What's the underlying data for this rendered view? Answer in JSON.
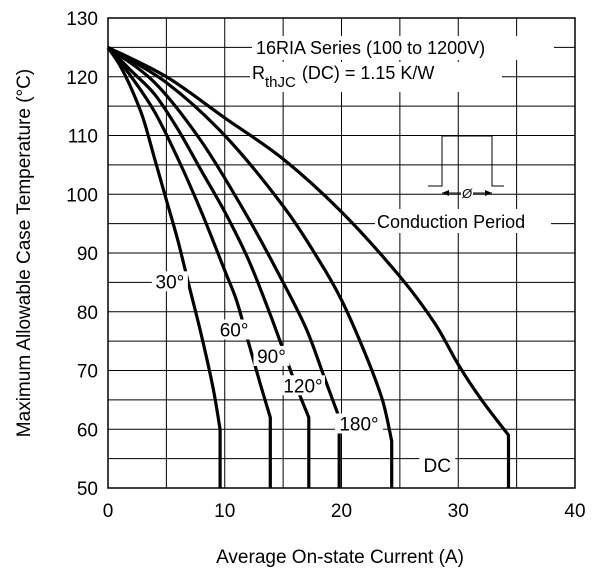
{
  "chart_data": {
    "type": "line",
    "title": "",
    "xlabel": "Average On-state Current (A)",
    "ylabel": "Maximum Allowable Case Temperature (°C)",
    "xlim": [
      0,
      40
    ],
    "ylim": [
      50,
      130
    ],
    "x_ticks": [
      "0",
      "10",
      "20",
      "30",
      "40"
    ],
    "y_ticks": [
      "50",
      "60",
      "70",
      "80",
      "90",
      "100",
      "110",
      "120",
      "130"
    ],
    "grid": true,
    "annotations": {
      "series_line": "16RIA Series (100 to 1200V)",
      "rth_prefix": "R",
      "rth_subscript": "thJC",
      "rth_suffix": "(DC) = 1.15 K/W",
      "inset_label": "Conduction Period",
      "inset_symbol": "Ø"
    },
    "series": [
      {
        "name": "30°",
        "points": [
          [
            0,
            125
          ],
          [
            1,
            122
          ],
          [
            2,
            118
          ],
          [
            3,
            113
          ],
          [
            4,
            106
          ],
          [
            5,
            99
          ],
          [
            6,
            92
          ],
          [
            7,
            84
          ],
          [
            8,
            76
          ],
          [
            9,
            67
          ],
          [
            9.6,
            60
          ],
          [
            9.6,
            50
          ]
        ]
      },
      {
        "name": "60°",
        "points": [
          [
            0,
            125
          ],
          [
            2,
            120
          ],
          [
            4,
            114
          ],
          [
            6,
            106
          ],
          [
            8,
            97
          ],
          [
            10,
            87
          ],
          [
            11,
            82
          ],
          [
            12,
            75
          ],
          [
            13,
            68
          ],
          [
            13.9,
            62
          ],
          [
            13.9,
            50
          ]
        ]
      },
      {
        "name": "90°",
        "points": [
          [
            0,
            125
          ],
          [
            2,
            121
          ],
          [
            4,
            117
          ],
          [
            6,
            111
          ],
          [
            8,
            104
          ],
          [
            10,
            97
          ],
          [
            12,
            89
          ],
          [
            14,
            79
          ],
          [
            16,
            68
          ],
          [
            17.2,
            62
          ],
          [
            17.2,
            50
          ]
        ]
      },
      {
        "name": "120°",
        "points": [
          [
            0,
            125
          ],
          [
            4,
            119
          ],
          [
            8,
            109
          ],
          [
            12,
            96
          ],
          [
            15,
            85
          ],
          [
            17,
            77
          ],
          [
            18.5,
            69
          ],
          [
            19.8,
            62
          ],
          [
            19.8,
            50
          ]
        ]
      },
      {
        "name": "180°",
        "points": [
          [
            0,
            125
          ],
          [
            5,
            119
          ],
          [
            10,
            110
          ],
          [
            15,
            98
          ],
          [
            18,
            89
          ],
          [
            20,
            82
          ],
          [
            22,
            73
          ],
          [
            23.5,
            65
          ],
          [
            24.3,
            58
          ],
          [
            24.3,
            50
          ]
        ]
      },
      {
        "name": "DC",
        "points": [
          [
            0,
            125
          ],
          [
            5,
            120
          ],
          [
            10,
            113
          ],
          [
            15,
            106
          ],
          [
            20,
            97
          ],
          [
            25,
            86
          ],
          [
            28,
            78
          ],
          [
            30,
            71
          ],
          [
            32,
            65
          ],
          [
            34.3,
            59
          ],
          [
            34.3,
            50
          ]
        ]
      }
    ]
  }
}
